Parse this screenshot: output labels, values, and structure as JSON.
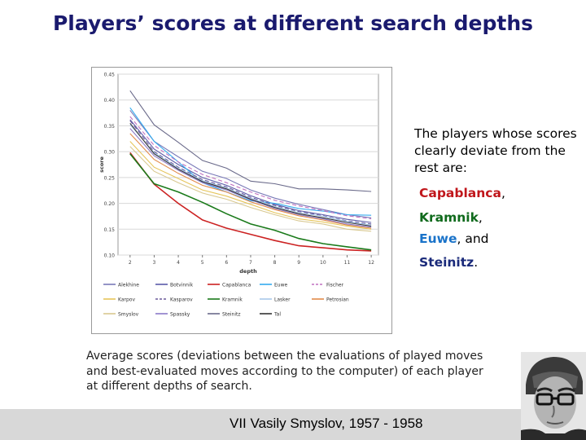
{
  "slide": {
    "title": "Players’ scores at different search depths",
    "side_text": "The players whose scores clearly deviate from the rest are:",
    "highlighted": [
      {
        "name": "Capablanca",
        "suffix": ",",
        "color": "#c0161b"
      },
      {
        "name": "Kramnik",
        "suffix": ",",
        "color": "#0f6a1c"
      },
      {
        "name": "Euwe",
        "suffix": ", and",
        "color": "#1a73c9"
      },
      {
        "name": "Steinitz",
        "suffix": ".",
        "color": "#1a2a7a"
      }
    ],
    "caption": "Average scores (deviations between the evaluations of played moves and best-evaluated moves according to the computer) of each player at different depths of search.",
    "footer": "VII Vasily Smyslov, 1957 - 1958"
  },
  "chart_data": {
    "type": "line",
    "xlabel": "depth",
    "ylabel": "score",
    "x": [
      2,
      3,
      4,
      5,
      6,
      7,
      8,
      9,
      10,
      11,
      12
    ],
    "xlim": [
      1.5,
      12.3
    ],
    "ylim": [
      0.1,
      0.45
    ],
    "yticks": [
      "0.10",
      "0.15",
      "0.20",
      "0.25",
      "0.30",
      "0.35",
      "0.40",
      "0.45"
    ],
    "xticks": [
      "2",
      "3",
      "4",
      "5",
      "6",
      "7",
      "8",
      "9",
      "10",
      "11",
      "12"
    ],
    "grid": true,
    "legend_position": "bottom",
    "series": [
      {
        "name": "Alekhine",
        "color": "#7a7ab8",
        "dash": "",
        "values": [
          0.38,
          0.32,
          0.29,
          0.262,
          0.248,
          0.226,
          0.21,
          0.198,
          0.188,
          0.178,
          0.172
        ]
      },
      {
        "name": "Botvinnik",
        "color": "#5a5aa8",
        "dash": "",
        "values": [
          0.362,
          0.305,
          0.275,
          0.25,
          0.235,
          0.215,
          0.198,
          0.186,
          0.178,
          0.169,
          0.163
        ]
      },
      {
        "name": "Capablanca",
        "color": "#cc2222",
        "dash": "",
        "values": [
          0.298,
          0.237,
          0.2,
          0.168,
          0.152,
          0.14,
          0.128,
          0.118,
          0.114,
          0.11,
          0.108
        ]
      },
      {
        "name": "Euwe",
        "color": "#33aaee",
        "dash": "",
        "values": [
          0.385,
          0.32,
          0.28,
          0.24,
          0.222,
          0.205,
          0.2,
          0.19,
          0.185,
          0.178,
          0.177
        ]
      },
      {
        "name": "Fischer",
        "color": "#c070c0",
        "dash": "5,3",
        "values": [
          0.368,
          0.312,
          0.28,
          0.256,
          0.24,
          0.222,
          0.206,
          0.195,
          0.186,
          0.176,
          0.17
        ]
      },
      {
        "name": "Karpov",
        "color": "#e6c55a",
        "dash": "",
        "values": [
          0.32,
          0.27,
          0.248,
          0.226,
          0.214,
          0.198,
          0.182,
          0.17,
          0.164,
          0.156,
          0.15
        ]
      },
      {
        "name": "Kasparov",
        "color": "#6a5a9a",
        "dash": "5,3",
        "values": [
          0.36,
          0.3,
          0.27,
          0.246,
          0.232,
          0.212,
          0.196,
          0.184,
          0.176,
          0.166,
          0.16
        ]
      },
      {
        "name": "Kramnik",
        "color": "#1a7a1a",
        "dash": "",
        "values": [
          0.296,
          0.238,
          0.222,
          0.202,
          0.18,
          0.16,
          0.148,
          0.132,
          0.122,
          0.116,
          0.11
        ]
      },
      {
        "name": "Lasker",
        "color": "#a8c8ea",
        "dash": "",
        "values": [
          0.352,
          0.298,
          0.268,
          0.244,
          0.23,
          0.21,
          0.194,
          0.182,
          0.175,
          0.165,
          0.158
        ]
      },
      {
        "name": "Petrosian",
        "color": "#e28a4a",
        "dash": "",
        "values": [
          0.335,
          0.285,
          0.258,
          0.235,
          0.222,
          0.203,
          0.188,
          0.176,
          0.168,
          0.158,
          0.152
        ]
      },
      {
        "name": "Smyslov",
        "color": "#d8c890",
        "dash": "",
        "values": [
          0.31,
          0.262,
          0.24,
          0.22,
          0.208,
          0.192,
          0.178,
          0.166,
          0.16,
          0.15,
          0.146
        ]
      },
      {
        "name": "Spassky",
        "color": "#8a7ac8",
        "dash": "",
        "values": [
          0.345,
          0.292,
          0.264,
          0.24,
          0.226,
          0.207,
          0.19,
          0.178,
          0.17,
          0.16,
          0.154
        ]
      },
      {
        "name": "Steinitz",
        "color": "#6a6a8a",
        "dash": "",
        "values": [
          0.418,
          0.352,
          0.318,
          0.283,
          0.268,
          0.243,
          0.238,
          0.228,
          0.228,
          0.226,
          0.223
        ]
      },
      {
        "name": "Tal",
        "color": "#333333",
        "dash": "",
        "values": [
          0.355,
          0.296,
          0.266,
          0.242,
          0.228,
          0.208,
          0.192,
          0.18,
          0.172,
          0.163,
          0.156
        ]
      }
    ]
  }
}
